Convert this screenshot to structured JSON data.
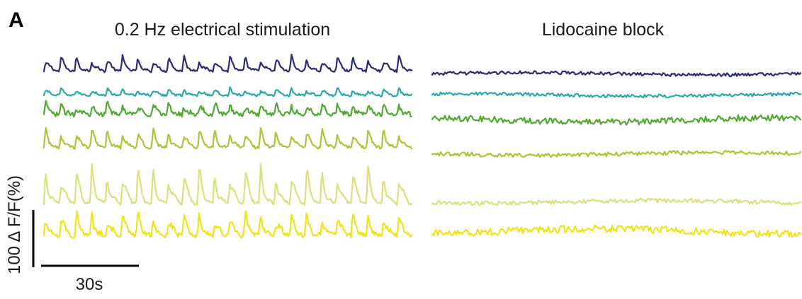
{
  "panel_letter": "A",
  "chart_data": {
    "type": "line",
    "description_panels": [
      "stimulation",
      "block"
    ],
    "panels": [
      {
        "id": "stimulation",
        "title": "0.2 Hz electrical stimulation",
        "stimulus_frequency_hz": 0.2,
        "duration_s": 120,
        "peaks_per_trace": 24
      },
      {
        "id": "block",
        "title": "Lidocaine block",
        "stimulus_frequency_hz": 0,
        "duration_s": 120,
        "peaks_per_trace": 0
      }
    ],
    "series": [
      {
        "color": "#2b2a7a",
        "stim_amplitude_pct": 30,
        "noise_pct": 4
      },
      {
        "color": "#2aa9a6",
        "stim_amplitude_pct": 14,
        "noise_pct": 4
      },
      {
        "color": "#52a832",
        "stim_amplitude_pct": 24,
        "noise_pct": 8
      },
      {
        "color": "#a8c738",
        "stim_amplitude_pct": 38,
        "noise_pct": 5
      },
      {
        "color": "#dbe07a",
        "stim_amplitude_pct": 72,
        "noise_pct": 5
      },
      {
        "color": "#efe31a",
        "stim_amplitude_pct": 46,
        "noise_pct": 9
      }
    ],
    "scale_bars": {
      "x": {
        "value_s": 30,
        "label": "30s"
      },
      "y": {
        "value_pct": 100,
        "label": "100 Δ F/F(%)"
      }
    }
  }
}
